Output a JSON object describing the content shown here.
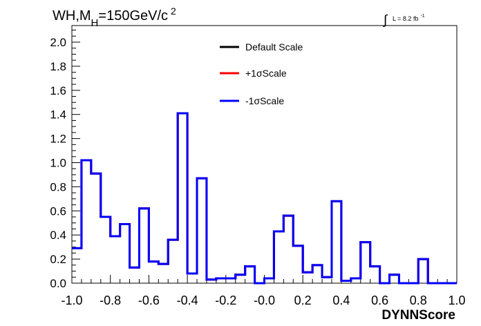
{
  "chart_data": {
    "type": "step",
    "title_main": "WH,M",
    "title_sub": "H",
    "title_rest": "=150GeV/c",
    "title_sup": "2",
    "lumi_text": "L = 8.2 fb",
    "lumi_sup": "-1",
    "lumi_integral": "∫",
    "xlabel": "DYNNScore",
    "xlim": [
      -1.0,
      1.0
    ],
    "ylim": [
      0.0,
      2.15
    ],
    "xticks": [
      "-1.0",
      "-0.8",
      "-0.6",
      "-0.4",
      "-0.2",
      "-0.0",
      "0.2",
      "0.4",
      "0.6",
      "0.8",
      "1.0"
    ],
    "yticks": [
      "0.0",
      "0.2",
      "0.4",
      "0.6",
      "0.8",
      "1.0",
      "1.2",
      "1.4",
      "1.6",
      "1.8",
      "2.0"
    ],
    "bin_edges_start": -1.0,
    "bin_width": 0.05,
    "series": [
      {
        "name": "Default Scale",
        "color": "#000000",
        "values": [
          0.29,
          1.02,
          0.91,
          0.55,
          0.39,
          0.49,
          0.13,
          0.62,
          0.18,
          0.16,
          0.36,
          1.41,
          0.08,
          0.87,
          0.03,
          0.04,
          0.04,
          0.07,
          0.14,
          0.0,
          0.04,
          0.43,
          0.56,
          0.31,
          0.09,
          0.15,
          0.05,
          0.68,
          0.02,
          0.04,
          0.34,
          0.14,
          0.0,
          0.07,
          0.0,
          0.0,
          0.2,
          0.0,
          0.0,
          0.0
        ]
      },
      {
        "name": "+1σScale",
        "color": "#ff0000",
        "values": [
          0.29,
          1.02,
          0.91,
          0.55,
          0.39,
          0.49,
          0.13,
          0.62,
          0.18,
          0.16,
          0.36,
          1.41,
          0.08,
          0.87,
          0.03,
          0.04,
          0.04,
          0.07,
          0.14,
          0.0,
          0.04,
          0.43,
          0.56,
          0.31,
          0.09,
          0.15,
          0.05,
          0.68,
          0.02,
          0.04,
          0.34,
          0.14,
          0.0,
          0.07,
          0.0,
          0.0,
          0.2,
          0.0,
          0.0,
          0.0
        ]
      },
      {
        "name": "-1σScale",
        "color": "#0000ff",
        "values": [
          0.29,
          1.02,
          0.91,
          0.55,
          0.39,
          0.49,
          0.13,
          0.62,
          0.18,
          0.16,
          0.36,
          1.41,
          0.08,
          0.87,
          0.03,
          0.04,
          0.04,
          0.07,
          0.14,
          0.0,
          0.04,
          0.43,
          0.56,
          0.31,
          0.09,
          0.15,
          0.05,
          0.68,
          0.02,
          0.04,
          0.34,
          0.14,
          0.0,
          0.07,
          0.0,
          0.0,
          0.2,
          0.0,
          0.0,
          0.0
        ]
      }
    ],
    "legend": "top-center"
  }
}
